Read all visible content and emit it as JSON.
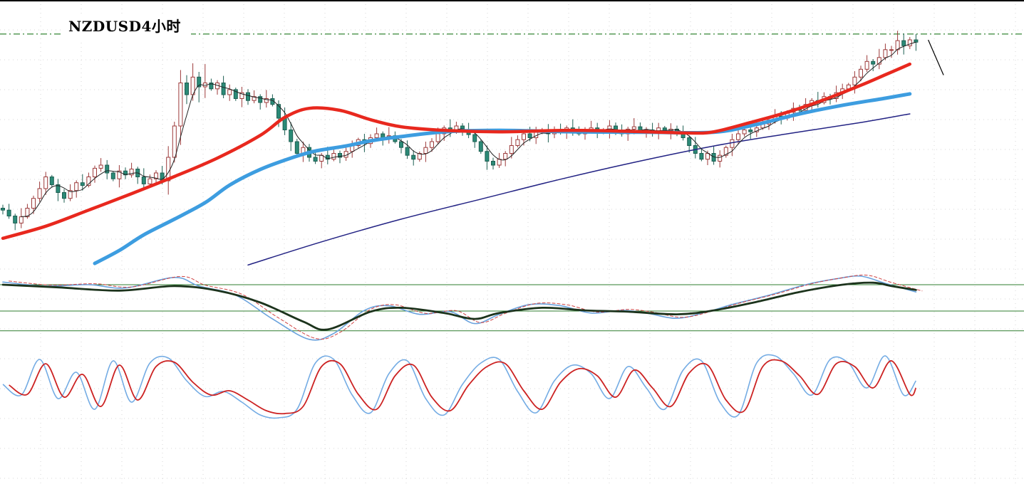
{
  "title": "NZDUSD4小时",
  "symbol": "NZDUSD",
  "timeframe_label": "4小时",
  "colors": {
    "background": "#ffffff",
    "grid": "#d7d7d7",
    "border": "#000000",
    "up_stroke": "#9c3a3a",
    "up_fill": "#ffffff",
    "down_stroke": "#1d5f52",
    "down_fill": "#2b8a77",
    "ma_fast": "#222222",
    "ma_mid_red": "#e8281e",
    "ma_mid_blue": "#3d9de0",
    "ma_slow_navy": "#232384",
    "resistance": "#1f7a1f",
    "level_green": "#2f7d2f",
    "osc_main": "#1c331c",
    "osc_signal_blue": "#6aa2dd",
    "osc_signal_red": "#d04444",
    "stoch_fast": "#74ace4",
    "stoch_slow": "#cc2222",
    "trend_line": "#000000"
  },
  "chart_data": [
    {
      "type": "candlestick",
      "panel": "price",
      "title": "NZDUSD4小时",
      "grid": true,
      "price_axis": {
        "min": 0.578,
        "max": 0.6445
      },
      "first_open": 0.595,
      "closes": [
        0.5945,
        0.593,
        0.5912,
        0.5928,
        0.595,
        0.5975,
        0.6,
        0.603,
        0.601,
        0.599,
        0.5975,
        0.5995,
        0.6015,
        0.6008,
        0.603,
        0.6052,
        0.606,
        0.604,
        0.6025,
        0.6045,
        0.6035,
        0.605,
        0.603,
        0.6012,
        0.6025,
        0.604,
        0.602,
        0.608,
        0.616,
        0.627,
        0.624,
        0.6285,
        0.626,
        0.627,
        0.6255,
        0.627,
        0.624,
        0.6253,
        0.623,
        0.6245,
        0.6225,
        0.6235,
        0.622,
        0.623,
        0.6215,
        0.618,
        0.615,
        0.612,
        0.609,
        0.6105,
        0.608,
        0.607,
        0.6085,
        0.6075,
        0.609,
        0.608,
        0.6095,
        0.611,
        0.6125,
        0.6115,
        0.613,
        0.614,
        0.6128,
        0.6135,
        0.612,
        0.6105,
        0.6085,
        0.6075,
        0.609,
        0.6105,
        0.612,
        0.614,
        0.6155,
        0.6145,
        0.616,
        0.615,
        0.6138,
        0.612,
        0.6095,
        0.607,
        0.606,
        0.6075,
        0.609,
        0.611,
        0.6125,
        0.614,
        0.613,
        0.6145,
        0.615,
        0.614,
        0.615,
        0.6145,
        0.6155,
        0.6148,
        0.614,
        0.615,
        0.6155,
        0.6145,
        0.615,
        0.616,
        0.6148,
        0.614,
        0.6152,
        0.6158,
        0.6145,
        0.615,
        0.6142,
        0.6155,
        0.6148,
        0.6152,
        0.6145,
        0.613,
        0.611,
        0.609,
        0.6075,
        0.609,
        0.607,
        0.6085,
        0.6105,
        0.6125,
        0.614,
        0.615,
        0.6145,
        0.6155,
        0.6165,
        0.6175,
        0.6185,
        0.618,
        0.6195,
        0.6205,
        0.62,
        0.6215,
        0.6225,
        0.622,
        0.6235,
        0.623,
        0.6245,
        0.6255,
        0.6265,
        0.6285,
        0.6305,
        0.6325,
        0.6318,
        0.6335,
        0.6355,
        0.6355,
        0.6378,
        0.6365,
        0.638,
        0.6374
      ],
      "wick_pattern": [
        0.0009,
        0.0016,
        0.0006,
        0.0022,
        0.0011,
        0.0007,
        0.0018,
        0.0013,
        0.0005,
        0.0015
      ],
      "wick_boost_ranges": [
        {
          "from": 27,
          "to": 33,
          "mult": 2.2
        },
        {
          "from": 45,
          "to": 48,
          "mult": 1.5
        },
        {
          "from": 144,
          "to": 148,
          "mult": 1.4
        }
      ],
      "overlays": [
        {
          "name": "ma-long-navy",
          "type": "points",
          "color_key": "ma_slow_navy",
          "width": 1.5,
          "points": [
            [
              40,
              0.5805
            ],
            [
              52,
              0.5864
            ],
            [
              65,
              0.5922
            ],
            [
              78,
              0.5973
            ],
            [
              91,
              0.6024
            ],
            [
              103,
              0.6067
            ],
            [
              116,
              0.6109
            ],
            [
              128,
              0.614
            ],
            [
              140,
              0.6169
            ],
            [
              148,
              0.6191
            ]
          ]
        },
        {
          "name": "ma-fast-black",
          "type": "sma",
          "period": 4,
          "color_key": "ma_fast",
          "width": 1
        },
        {
          "name": "ma-mid-blue",
          "type": "points",
          "color_key": "ma_mid_blue",
          "width": 5,
          "points": [
            [
              15,
              0.5809
            ],
            [
              19,
              0.5842
            ],
            [
              23,
              0.5882
            ],
            [
              28,
              0.5922
            ],
            [
              33,
              0.5964
            ],
            [
              37,
              0.6009
            ],
            [
              42,
              0.6049
            ],
            [
              47,
              0.6078
            ],
            [
              51,
              0.6096
            ],
            [
              56,
              0.6109
            ],
            [
              60,
              0.6122
            ],
            [
              65,
              0.6133
            ],
            [
              72,
              0.6145
            ],
            [
              81,
              0.6149
            ],
            [
              93,
              0.6145
            ],
            [
              105,
              0.6144
            ],
            [
              116,
              0.6144
            ],
            [
              123,
              0.6164
            ],
            [
              130,
              0.6191
            ],
            [
              137,
              0.6213
            ],
            [
              144,
              0.6231
            ],
            [
              148,
              0.6242
            ]
          ]
        },
        {
          "name": "ma-mid-red",
          "type": "points",
          "color_key": "ma_mid_red",
          "width": 4.5,
          "points": [
            [
              0,
              0.5873
            ],
            [
              7,
              0.5904
            ],
            [
              14,
              0.5945
            ],
            [
              21,
              0.5987
            ],
            [
              28,
              0.6031
            ],
            [
              35,
              0.6078
            ],
            [
              42,
              0.6136
            ],
            [
              46,
              0.6182
            ],
            [
              50,
              0.6205
            ],
            [
              55,
              0.62
            ],
            [
              60,
              0.6176
            ],
            [
              65,
              0.6158
            ],
            [
              72,
              0.6149
            ],
            [
              81,
              0.6145
            ],
            [
              93,
              0.6149
            ],
            [
              105,
              0.6145
            ],
            [
              112,
              0.6142
            ],
            [
              116,
              0.6145
            ],
            [
              122,
              0.6169
            ],
            [
              128,
              0.6195
            ],
            [
              134,
              0.6227
            ],
            [
              140,
              0.6264
            ],
            [
              144,
              0.6291
            ],
            [
              148,
              0.6318
            ]
          ]
        }
      ],
      "resistance_level": 0.6395,
      "trend_line": {
        "points": [
          [
            151,
            0.638
          ],
          [
            153.5,
            0.629
          ]
        ]
      }
    },
    {
      "type": "line",
      "panel": "oscillator-1",
      "levels": [
        0.004,
        0.0,
        -0.003
      ],
      "series": [
        {
          "name": "osc-fast-blue",
          "color_key": "osc_signal_blue",
          "width": 1.6,
          "points": [
            [
              0,
              0.0044
            ],
            [
              7,
              0.0038
            ],
            [
              14,
              0.004
            ],
            [
              20,
              0.0035
            ],
            [
              28,
              0.0051
            ],
            [
              32,
              0.0038
            ],
            [
              38,
              0.0024
            ],
            [
              44,
              -0.0012
            ],
            [
              50,
              -0.0043
            ],
            [
              54,
              -0.0034
            ],
            [
              59,
              0.0001
            ],
            [
              63,
              0.0008
            ],
            [
              68,
              -0.0005
            ],
            [
              73,
              -0.0001
            ],
            [
              77,
              -0.0019
            ],
            [
              81,
              -0.0005
            ],
            [
              86,
              0.001
            ],
            [
              91,
              0.0008
            ],
            [
              96,
              -0.0003
            ],
            [
              101,
              0.0001
            ],
            [
              105,
              -0.0003
            ],
            [
              110,
              -0.0011
            ],
            [
              115,
              -0.0001
            ],
            [
              119,
              0.001
            ],
            [
              125,
              0.0024
            ],
            [
              131,
              0.004
            ],
            [
              136,
              0.0049
            ],
            [
              140,
              0.0053
            ],
            [
              144,
              0.0042
            ],
            [
              149,
              0.0029
            ]
          ]
        },
        {
          "name": "osc-signal-red-dashed",
          "color_key": "osc_signal_red",
          "width": 1,
          "dashed": true,
          "derive_from": "osc-fast-blue",
          "index_offset": 1,
          "value_offset": 0.00015
        },
        {
          "name": "osc-main-green",
          "color_key": "osc_main",
          "width": 2.8,
          "points": [
            [
              0,
              0.004
            ],
            [
              9,
              0.0036
            ],
            [
              19,
              0.0031
            ],
            [
              28,
              0.0038
            ],
            [
              35,
              0.0031
            ],
            [
              42,
              0.0013
            ],
            [
              49,
              -0.0016
            ],
            [
              53,
              -0.0028
            ],
            [
              60,
              -0.0001
            ],
            [
              65,
              0.0005
            ],
            [
              72,
              -0.0003
            ],
            [
              77,
              -0.0012
            ],
            [
              81,
              -0.0003
            ],
            [
              88,
              0.0005
            ],
            [
              95,
              0.0001
            ],
            [
              102,
              -0.0001
            ],
            [
              110,
              -0.0005
            ],
            [
              116,
              0.0001
            ],
            [
              123,
              0.0014
            ],
            [
              130,
              0.0029
            ],
            [
              137,
              0.004
            ],
            [
              142,
              0.0043
            ],
            [
              145,
              0.0038
            ],
            [
              149,
              0.0032
            ]
          ]
        }
      ]
    },
    {
      "type": "line",
      "panel": "oscillator-2",
      "value_axis": {
        "min": 0,
        "max": 100
      },
      "series": [
        {
          "name": "stoch-fast-blue",
          "color_key": "stoch_fast",
          "width": 1.6,
          "points": [
            [
              0,
              55
            ],
            [
              3,
              40
            ],
            [
              6,
              90
            ],
            [
              9,
              35
            ],
            [
              12,
              72
            ],
            [
              15,
              20
            ],
            [
              18,
              88
            ],
            [
              21,
              30
            ],
            [
              24,
              85
            ],
            [
              27,
              92
            ],
            [
              30,
              60
            ],
            [
              33,
              38
            ],
            [
              36,
              45
            ],
            [
              39,
              30
            ],
            [
              42,
              12
            ],
            [
              45,
              8
            ],
            [
              48,
              20
            ],
            [
              51,
              85
            ],
            [
              54,
              90
            ],
            [
              57,
              40
            ],
            [
              60,
              15
            ],
            [
              63,
              70
            ],
            [
              66,
              88
            ],
            [
              69,
              35
            ],
            [
              72,
              12
            ],
            [
              75,
              55
            ],
            [
              78,
              85
            ],
            [
              81,
              90
            ],
            [
              84,
              45
            ],
            [
              87,
              15
            ],
            [
              90,
              60
            ],
            [
              93,
              82
            ],
            [
              96,
              70
            ],
            [
              99,
              35
            ],
            [
              102,
              80
            ],
            [
              105,
              50
            ],
            [
              108,
              20
            ],
            [
              111,
              75
            ],
            [
              114,
              88
            ],
            [
              117,
              30
            ],
            [
              120,
              12
            ],
            [
              123,
              85
            ],
            [
              126,
              95
            ],
            [
              129,
              70
            ],
            [
              132,
              40
            ],
            [
              135,
              90
            ],
            [
              138,
              85
            ],
            [
              141,
              50
            ],
            [
              144,
              95
            ],
            [
              147,
              40
            ],
            [
              149,
              60
            ]
          ]
        },
        {
          "name": "stoch-slow-red",
          "color_key": "stoch_slow",
          "width": 1.8,
          "points": [
            [
              1,
              54
            ],
            [
              4,
              41
            ],
            [
              7,
              84
            ],
            [
              10,
              37
            ],
            [
              13,
              69
            ],
            [
              16,
              24
            ],
            [
              19,
              82
            ],
            [
              22,
              33
            ],
            [
              25,
              80
            ],
            [
              28,
              86
            ],
            [
              31,
              58
            ],
            [
              34,
              40
            ],
            [
              37,
              46
            ],
            [
              40,
              33
            ],
            [
              43,
              18
            ],
            [
              46,
              14
            ],
            [
              49,
              24
            ],
            [
              52,
              80
            ],
            [
              55,
              84
            ],
            [
              58,
              41
            ],
            [
              61,
              20
            ],
            [
              64,
              67
            ],
            [
              67,
              82
            ],
            [
              70,
              37
            ],
            [
              73,
              18
            ],
            [
              76,
              54
            ],
            [
              79,
              80
            ],
            [
              82,
              84
            ],
            [
              85,
              46
            ],
            [
              88,
              20
            ],
            [
              91,
              58
            ],
            [
              94,
              77
            ],
            [
              97,
              67
            ],
            [
              100,
              37
            ],
            [
              103,
              75
            ],
            [
              106,
              50
            ],
            [
              109,
              24
            ],
            [
              112,
              71
            ],
            [
              115,
              82
            ],
            [
              118,
              33
            ],
            [
              121,
              18
            ],
            [
              124,
              80
            ],
            [
              127,
              88
            ],
            [
              130,
              67
            ],
            [
              133,
              41
            ],
            [
              136,
              84
            ],
            [
              139,
              80
            ],
            [
              142,
              50
            ],
            [
              145,
              88
            ],
            [
              148,
              41
            ],
            [
              149,
              50
            ]
          ]
        }
      ]
    }
  ]
}
